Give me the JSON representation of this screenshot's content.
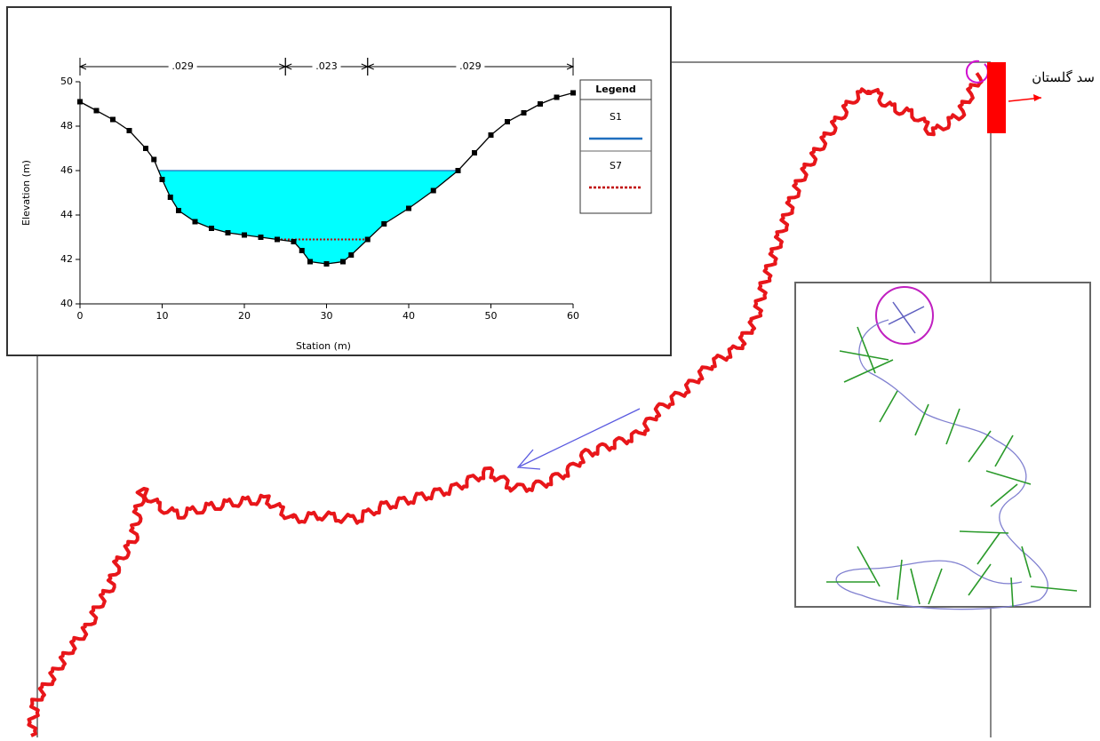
{
  "chart_data": {
    "type": "line",
    "x_label": "Station (m)",
    "y_label": "Elevation (m)",
    "x": [
      0,
      2,
      4,
      6,
      8,
      9,
      10,
      11,
      12,
      14,
      16,
      18,
      20,
      22,
      24,
      26,
      27,
      28,
      30,
      32,
      33,
      35,
      37,
      40,
      43,
      46,
      48,
      50,
      52,
      54,
      56,
      58,
      60
    ],
    "series": [
      {
        "color": "#000000",
        "values": [
          49.1,
          48.7,
          48.3,
          47.8,
          47.0,
          46.5,
          45.6,
          44.8,
          44.2,
          43.7,
          43.4,
          43.2,
          43.1,
          43.0,
          42.9,
          42.8,
          42.4,
          41.9,
          41.8,
          41.9,
          42.2,
          42.9,
          43.6,
          44.3,
          45.1,
          46.0,
          46.8,
          47.6,
          48.2,
          48.6,
          49.0,
          49.3,
          49.5
        ]
      }
    ],
    "water_levels": [
      {
        "name": "S1",
        "color": "#1f6fbf",
        "value": 46
      },
      {
        "name": "S7",
        "color": "#c00000",
        "value": 42.9
      }
    ],
    "water_fill": "#00ffff",
    "legend_title": "Legend",
    "n_values": [
      {
        "label": ".029",
        "from": 0,
        "to": 25
      },
      {
        "label": ".023",
        "from": 25,
        "to": 35
      },
      {
        "label": ".029",
        "from": 35,
        "to": 60
      }
    ],
    "xlim": [
      0,
      60
    ],
    "xticks": [
      0,
      10,
      20,
      30,
      40,
      50,
      60
    ],
    "ylim": [
      40,
      50
    ],
    "yticks": [
      40,
      42,
      44,
      46,
      48,
      50
    ]
  },
  "map": {
    "dam_label": "سد گلستان"
  }
}
